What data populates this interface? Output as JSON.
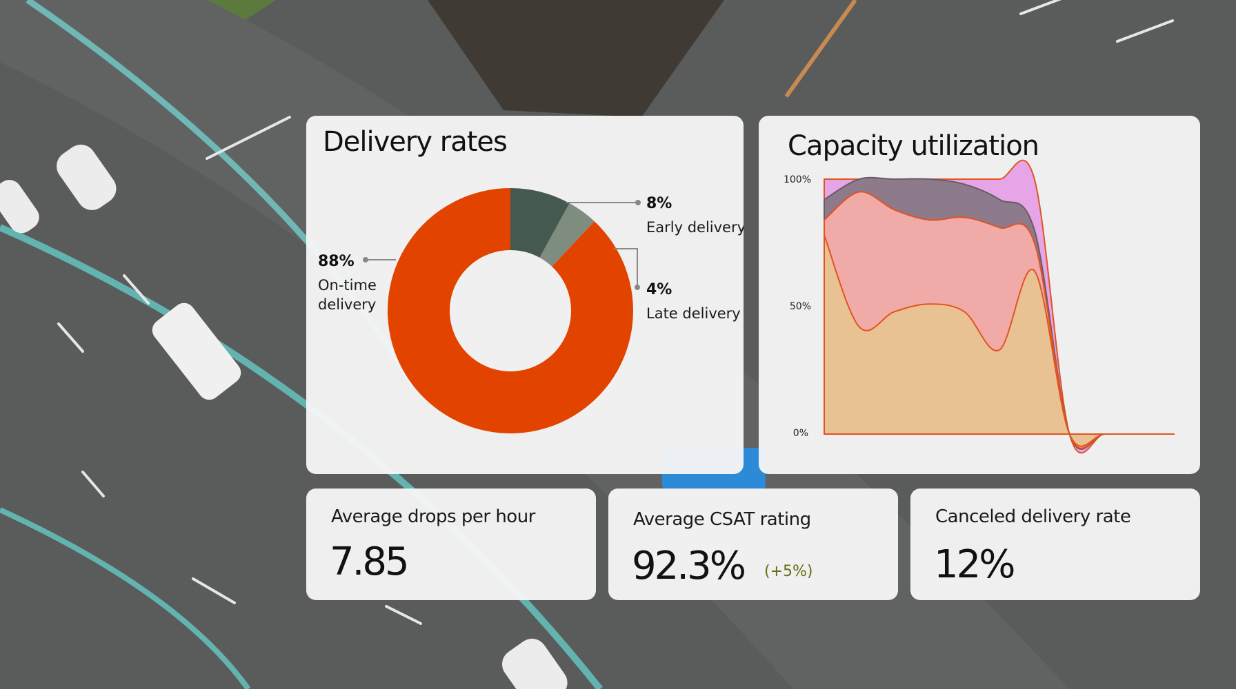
{
  "colors": {
    "accent": "#e24400",
    "early": "#465950",
    "late": "#7f8c80",
    "change_positive": "#6b6a12"
  },
  "delivery_rates": {
    "title": "Delivery rates",
    "chart_data": {
      "type": "pie",
      "style": "donut",
      "slices": [
        {
          "label_pct": "88%",
          "label_text": [
            "On-time",
            "delivery"
          ],
          "value": 88,
          "color": "#e24400"
        },
        {
          "label_pct": "8%",
          "label_text": [
            "Early delivery"
          ],
          "value": 8,
          "color": "#465950"
        },
        {
          "label_pct": "4%",
          "label_text": [
            "Late delivery"
          ],
          "value": 4,
          "color": "#7f8c80"
        }
      ]
    }
  },
  "capacity_utilization": {
    "title": "Capacity utilization",
    "chart_data": {
      "type": "area",
      "ylim": [
        0,
        100
      ],
      "y_ticks": [
        "100%",
        "50%",
        "0%"
      ],
      "x": [
        0,
        1,
        2,
        3,
        4,
        5,
        6,
        7,
        8,
        9,
        10
      ],
      "series": [
        {
          "color": "#e8c292",
          "values": [
            78,
            42,
            48,
            51,
            48,
            33,
            64,
            0,
            0,
            0,
            0
          ]
        },
        {
          "color": "#f0aaa8",
          "values": [
            84,
            95,
            88,
            84,
            85,
            81,
            75,
            0,
            0,
            0,
            0
          ]
        },
        {
          "color": "#8d7a8a",
          "values": [
            92,
            100,
            100,
            100,
            98,
            92,
            80,
            0,
            0,
            0,
            0
          ]
        },
        {
          "color": "#e6a5e6",
          "values": [
            100,
            100,
            100,
            100,
            100,
            100,
            100,
            0,
            0,
            0,
            0
          ]
        }
      ]
    }
  },
  "stats": [
    {
      "label": "Average drops per hour",
      "value": "7.85",
      "change": ""
    },
    {
      "label": "Average CSAT rating",
      "value": "92.3%",
      "change": "(+5%)"
    },
    {
      "label": "Canceled delivery rate",
      "value": "12%",
      "change": ""
    }
  ]
}
